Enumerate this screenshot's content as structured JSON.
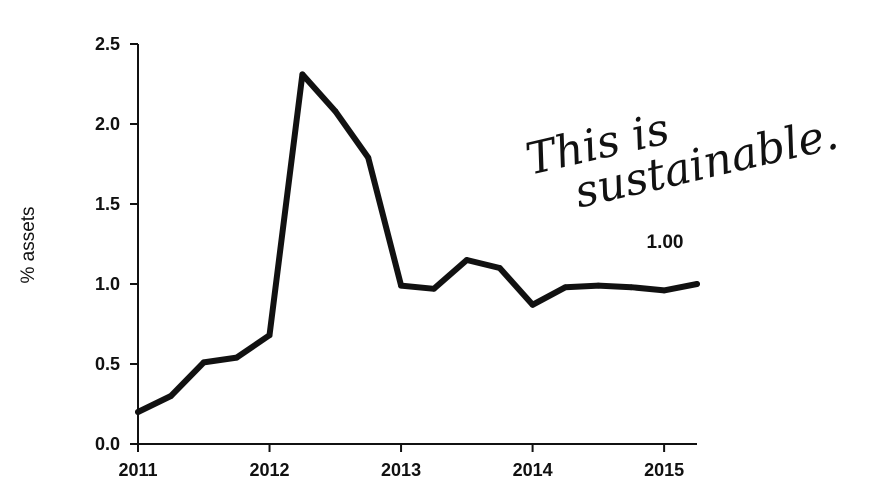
{
  "chart_data": {
    "type": "line",
    "title": "",
    "xlabel": "",
    "ylabel": "% assets",
    "x_ticks": [
      "2011",
      "2012",
      "2013",
      "2014",
      "2015"
    ],
    "y_ticks": [
      "0.0",
      "0.5",
      "1.0",
      "1.5",
      "2.0",
      "2.5"
    ],
    "xlim": [
      2011,
      2015.25
    ],
    "ylim": [
      0,
      2.5
    ],
    "grid": false,
    "series": [
      {
        "x": [
          2011.0,
          2011.25,
          2011.5,
          2011.75,
          2012.0,
          2012.25,
          2012.5,
          2012.75,
          2013.0,
          2013.25,
          2013.5,
          2013.75,
          2014.0,
          2014.25,
          2014.5,
          2014.75,
          2015.0,
          2015.25
        ],
        "y": [
          0.2,
          0.3,
          0.51,
          0.54,
          0.68,
          2.31,
          2.08,
          1.79,
          0.99,
          0.97,
          1.15,
          1.1,
          0.87,
          0.98,
          0.99,
          0.98,
          0.96,
          1.0
        ]
      }
    ],
    "annotations": [
      {
        "text": "1.00"
      }
    ],
    "handwritten_note": {
      "lines": [
        "This is",
        "sustainable."
      ]
    }
  }
}
